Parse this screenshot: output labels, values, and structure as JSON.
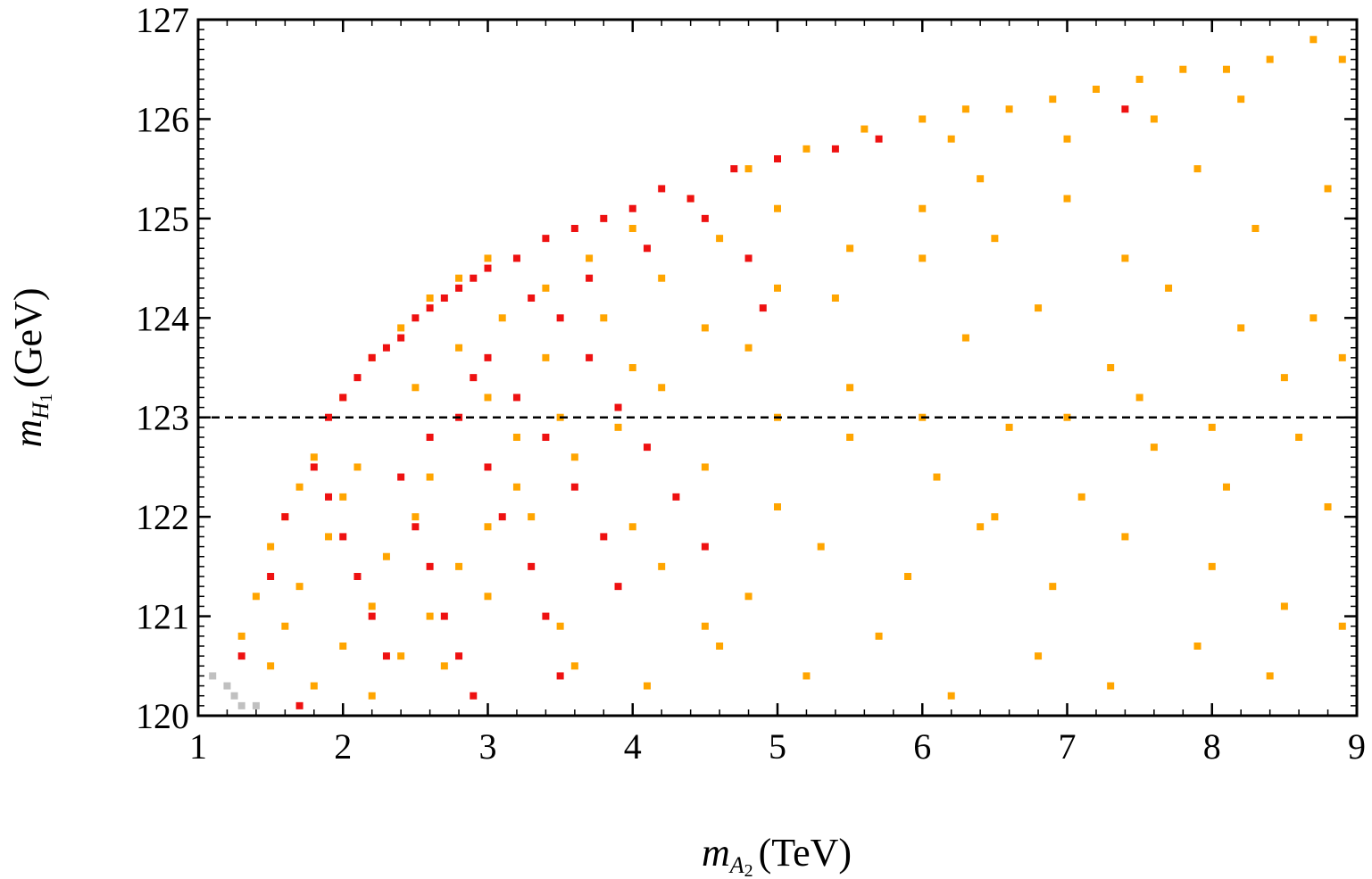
{
  "chart_data": {
    "type": "scatter",
    "title": "",
    "xlabel": {
      "var": "m",
      "sub": "A",
      "subsub": "2",
      "unit": "(TeV)"
    },
    "ylabel": {
      "var": "m",
      "sub": "H",
      "subsub": "1",
      "unit": "(GeV)"
    },
    "xlim": [
      1,
      9
    ],
    "ylim": [
      120,
      127
    ],
    "xticks": [
      "1",
      "2",
      "3",
      "4",
      "5",
      "6",
      "7",
      "8",
      "9"
    ],
    "yticks": [
      "120",
      "121",
      "122",
      "123",
      "124",
      "125",
      "126",
      "127"
    ],
    "grid": false,
    "legend": "none",
    "reference_line": {
      "y": 123,
      "style": "dashed",
      "color": "#000000"
    },
    "series": [
      {
        "color": "#ffa500",
        "points": [
          [
            1.3,
            120.8
          ],
          [
            1.4,
            121.2
          ],
          [
            1.5,
            121.7
          ],
          [
            1.6,
            122.0
          ],
          [
            1.7,
            122.3
          ],
          [
            1.8,
            122.6
          ],
          [
            1.5,
            120.5
          ],
          [
            1.6,
            120.9
          ],
          [
            1.7,
            121.3
          ],
          [
            1.9,
            121.8
          ],
          [
            2.0,
            122.2
          ],
          [
            2.1,
            122.5
          ],
          [
            1.8,
            120.3
          ],
          [
            2.0,
            120.7
          ],
          [
            2.2,
            121.1
          ],
          [
            2.3,
            121.6
          ],
          [
            2.5,
            122.0
          ],
          [
            2.6,
            122.4
          ],
          [
            2.2,
            120.2
          ],
          [
            2.4,
            120.6
          ],
          [
            2.6,
            121.0
          ],
          [
            2.8,
            121.5
          ],
          [
            3.0,
            121.9
          ],
          [
            3.2,
            122.3
          ],
          [
            2.0,
            123.2
          ],
          [
            2.2,
            123.6
          ],
          [
            2.4,
            123.9
          ],
          [
            2.6,
            124.2
          ],
          [
            2.8,
            124.4
          ],
          [
            3.0,
            124.6
          ],
          [
            2.5,
            123.3
          ],
          [
            2.8,
            123.7
          ],
          [
            3.1,
            124.0
          ],
          [
            3.4,
            124.3
          ],
          [
            3.7,
            124.6
          ],
          [
            4.0,
            124.9
          ],
          [
            3.0,
            123.2
          ],
          [
            3.4,
            123.6
          ],
          [
            3.8,
            124.0
          ],
          [
            4.2,
            124.4
          ],
          [
            4.6,
            124.8
          ],
          [
            5.0,
            125.1
          ],
          [
            3.5,
            123.0
          ],
          [
            4.0,
            123.5
          ],
          [
            4.5,
            123.9
          ],
          [
            5.0,
            124.3
          ],
          [
            5.5,
            124.7
          ],
          [
            6.0,
            125.1
          ],
          [
            4.2,
            123.3
          ],
          [
            4.8,
            123.7
          ],
          [
            5.4,
            124.2
          ],
          [
            6.0,
            124.6
          ],
          [
            6.4,
            125.4
          ],
          [
            6.2,
            125.8
          ],
          [
            4.4,
            125.2
          ],
          [
            4.8,
            125.5
          ],
          [
            5.2,
            125.7
          ],
          [
            5.6,
            125.9
          ],
          [
            6.0,
            126.0
          ],
          [
            6.3,
            126.1
          ],
          [
            3.2,
            122.8
          ],
          [
            3.6,
            122.6
          ],
          [
            3.9,
            122.9
          ],
          [
            3.3,
            122.0
          ],
          [
            3.0,
            121.2
          ],
          [
            2.7,
            120.5
          ],
          [
            6.6,
            126.1
          ],
          [
            6.9,
            126.2
          ],
          [
            7.2,
            126.3
          ],
          [
            7.5,
            126.4
          ],
          [
            7.8,
            126.5
          ],
          [
            8.1,
            126.5
          ],
          [
            8.4,
            126.6
          ],
          [
            8.7,
            126.8
          ],
          [
            8.9,
            126.6
          ],
          [
            7.0,
            125.8
          ],
          [
            7.6,
            126.0
          ],
          [
            8.2,
            126.2
          ],
          [
            6.5,
            124.8
          ],
          [
            7.0,
            125.2
          ],
          [
            7.4,
            124.6
          ],
          [
            7.9,
            125.5
          ],
          [
            8.3,
            124.9
          ],
          [
            8.8,
            125.3
          ],
          [
            6.3,
            123.8
          ],
          [
            6.8,
            124.1
          ],
          [
            7.3,
            123.5
          ],
          [
            7.7,
            124.3
          ],
          [
            8.2,
            123.9
          ],
          [
            8.7,
            124.0
          ],
          [
            4.5,
            122.5
          ],
          [
            5.0,
            122.1
          ],
          [
            5.5,
            122.8
          ],
          [
            6.1,
            122.4
          ],
          [
            6.6,
            122.9
          ],
          [
            7.1,
            122.2
          ],
          [
            7.6,
            122.7
          ],
          [
            8.1,
            122.3
          ],
          [
            8.6,
            122.8
          ],
          [
            4.2,
            121.5
          ],
          [
            4.8,
            121.2
          ],
          [
            5.3,
            121.7
          ],
          [
            5.9,
            121.4
          ],
          [
            6.4,
            121.9
          ],
          [
            6.9,
            121.3
          ],
          [
            7.4,
            121.8
          ],
          [
            8.0,
            121.5
          ],
          [
            8.5,
            121.1
          ],
          [
            3.6,
            120.5
          ],
          [
            4.1,
            120.3
          ],
          [
            4.6,
            120.7
          ],
          [
            5.2,
            120.4
          ],
          [
            5.7,
            120.8
          ],
          [
            6.2,
            120.2
          ],
          [
            6.8,
            120.6
          ],
          [
            7.3,
            120.3
          ],
          [
            7.9,
            120.7
          ],
          [
            8.4,
            120.4
          ],
          [
            8.9,
            120.9
          ],
          [
            5.5,
            123.3
          ],
          [
            6.0,
            123.0
          ],
          [
            6.5,
            122.0
          ],
          [
            7.0,
            123.0
          ],
          [
            7.5,
            123.2
          ],
          [
            8.0,
            122.9
          ],
          [
            8.5,
            123.4
          ],
          [
            8.9,
            123.6
          ],
          [
            8.8,
            122.1
          ],
          [
            3.5,
            120.9
          ],
          [
            4.0,
            121.9
          ],
          [
            4.5,
            120.9
          ],
          [
            5.0,
            123.0
          ]
        ]
      },
      {
        "color": "#ee1111",
        "points": [
          [
            1.9,
            123.0
          ],
          [
            2.0,
            123.2
          ],
          [
            2.1,
            123.4
          ],
          [
            2.2,
            123.6
          ],
          [
            2.3,
            123.7
          ],
          [
            2.4,
            123.8
          ],
          [
            2.5,
            124.0
          ],
          [
            2.6,
            124.1
          ],
          [
            2.7,
            124.2
          ],
          [
            2.8,
            124.3
          ],
          [
            2.9,
            124.4
          ],
          [
            3.0,
            124.5
          ],
          [
            3.2,
            124.6
          ],
          [
            3.4,
            124.8
          ],
          [
            3.6,
            124.9
          ],
          [
            3.8,
            125.0
          ],
          [
            4.0,
            125.1
          ],
          [
            4.2,
            125.3
          ],
          [
            1.8,
            122.5
          ],
          [
            1.9,
            122.2
          ],
          [
            2.0,
            121.8
          ],
          [
            2.1,
            121.4
          ],
          [
            2.2,
            121.0
          ],
          [
            2.3,
            120.6
          ],
          [
            2.4,
            122.4
          ],
          [
            2.5,
            121.9
          ],
          [
            2.6,
            121.5
          ],
          [
            2.7,
            121.0
          ],
          [
            2.8,
            120.6
          ],
          [
            2.9,
            120.2
          ],
          [
            2.8,
            123.0
          ],
          [
            3.0,
            122.5
          ],
          [
            3.1,
            122.0
          ],
          [
            3.3,
            121.5
          ],
          [
            3.4,
            121.0
          ],
          [
            3.5,
            120.4
          ],
          [
            3.0,
            123.6
          ],
          [
            3.2,
            123.2
          ],
          [
            3.4,
            122.8
          ],
          [
            3.6,
            122.3
          ],
          [
            3.8,
            121.8
          ],
          [
            3.9,
            121.3
          ],
          [
            3.5,
            124.0
          ],
          [
            3.7,
            123.6
          ],
          [
            3.9,
            123.1
          ],
          [
            4.1,
            122.7
          ],
          [
            4.3,
            122.2
          ],
          [
            4.5,
            121.7
          ],
          [
            4.5,
            125.0
          ],
          [
            4.8,
            124.6
          ],
          [
            4.9,
            124.1
          ],
          [
            4.7,
            125.5
          ],
          [
            5.0,
            125.6
          ],
          [
            5.4,
            125.7
          ],
          [
            5.7,
            125.8
          ],
          [
            7.4,
            126.1
          ],
          [
            1.3,
            120.6
          ],
          [
            1.5,
            121.4
          ],
          [
            1.7,
            120.1
          ],
          [
            1.6,
            122.0
          ],
          [
            2.6,
            122.8
          ],
          [
            2.9,
            123.4
          ],
          [
            3.3,
            124.2
          ],
          [
            3.7,
            124.4
          ],
          [
            4.1,
            124.7
          ],
          [
            4.4,
            125.2
          ]
        ]
      },
      {
        "color": "#c0c0c0",
        "points": [
          [
            1.1,
            120.4
          ],
          [
            1.2,
            120.3
          ],
          [
            1.25,
            120.2
          ],
          [
            1.3,
            120.1
          ],
          [
            1.4,
            120.1
          ]
        ]
      }
    ]
  }
}
